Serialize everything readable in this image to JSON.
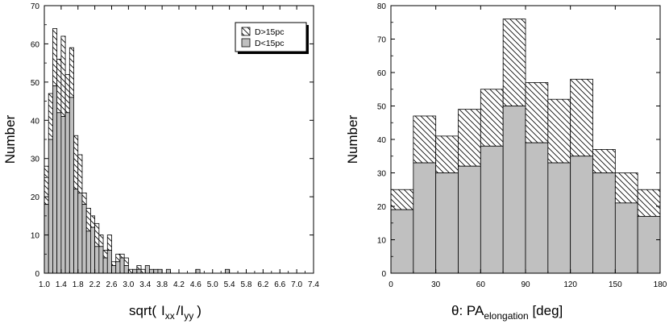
{
  "chart_data": [
    {
      "type": "bar",
      "subtype": "stacked-histogram",
      "xlabel": {
        "main": "sqrt(",
        "sub1": "xx",
        "sep": "/",
        "sub2": "yy",
        "close": ")"
      },
      "ylabel": "Number",
      "xlim": [
        1.0,
        7.4
      ],
      "ylim": [
        0,
        70
      ],
      "bin_width": 0.1,
      "x_ticks": [
        "1.0",
        "1.4",
        "1.8",
        "2.2",
        "2.6",
        "3.0",
        "3.4",
        "3.8",
        "4.2",
        "4.6",
        "5.0",
        "5.4",
        "5.8",
        "6.2",
        "6.6",
        "7.0",
        "7.4"
      ],
      "y_ticks": [
        0,
        10,
        20,
        30,
        40,
        50,
        60,
        70
      ],
      "bins": [
        1.0,
        1.1,
        1.2,
        1.3,
        1.4,
        1.5,
        1.6,
        1.7,
        1.8,
        1.9,
        2.0,
        2.1,
        2.2,
        2.3,
        2.4,
        2.5,
        2.6,
        2.7,
        2.8,
        2.9,
        3.0,
        3.1,
        3.2,
        3.3,
        3.4,
        3.5,
        3.6,
        3.7,
        3.8,
        3.9,
        4.0,
        4.1,
        4.2,
        4.3,
        4.4,
        4.5,
        4.6,
        4.7,
        4.8,
        4.9,
        5.0,
        5.1,
        5.2,
        5.3,
        5.4,
        5.5,
        5.6,
        5.7,
        5.8,
        5.9,
        6.0,
        6.1,
        6.2,
        6.3,
        6.4,
        6.5,
        6.6,
        6.7,
        6.8,
        6.9,
        7.0,
        7.1,
        7.2,
        7.3
      ],
      "series": [
        {
          "name": "D<15pc",
          "fill": "#c0c0c0",
          "values": [
            18,
            35,
            49,
            42,
            41,
            42,
            46,
            22,
            21,
            18,
            11,
            12,
            7,
            7,
            4,
            6,
            2,
            3,
            4,
            2,
            0,
            1,
            1,
            0,
            2,
            1,
            1,
            1,
            0,
            1,
            0,
            0,
            0,
            0,
            0,
            0,
            1,
            0,
            0,
            0,
            0,
            0,
            0,
            1,
            0,
            0,
            0,
            0,
            0,
            0,
            0,
            0,
            0,
            0,
            0,
            0,
            0,
            0,
            0,
            0,
            0,
            0,
            0,
            0
          ]
        },
        {
          "name": "D>15pc",
          "fill": "hatch",
          "values": [
            28,
            47,
            64,
            56,
            62,
            52,
            59,
            36,
            31,
            21,
            17,
            15,
            13,
            10,
            6,
            10,
            3,
            5,
            5,
            4,
            1,
            1,
            2,
            1,
            2,
            1,
            1,
            1,
            0,
            1,
            0,
            0,
            0,
            0,
            0,
            0,
            1,
            0,
            0,
            0,
            0,
            0,
            0,
            1,
            0,
            0,
            0,
            0,
            0,
            0,
            0,
            0,
            0,
            0,
            0,
            0,
            0,
            0,
            0,
            0,
            0,
            0,
            0,
            0
          ]
        }
      ],
      "legend": {
        "placement": "top-right",
        "entries": [
          "D>15pc",
          "D<15pc"
        ]
      }
    },
    {
      "type": "bar",
      "subtype": "stacked-histogram",
      "xlabel": {
        "prefix": "θ:  PA",
        "sub": "elongation",
        "suffix": " [deg]"
      },
      "ylabel": "Number",
      "xlim": [
        0,
        180
      ],
      "ylim": [
        0,
        80
      ],
      "bin_width": 15,
      "x_ticks": [
        "0",
        "30",
        "60",
        "90",
        "120",
        "150",
        "180"
      ],
      "y_ticks": [
        0,
        10,
        20,
        30,
        40,
        50,
        60,
        70,
        80
      ],
      "bins": [
        0,
        15,
        30,
        45,
        60,
        75,
        90,
        105,
        120,
        135,
        150,
        165
      ],
      "series": [
        {
          "name": "D<15pc",
          "fill": "#c0c0c0",
          "values": [
            19,
            33,
            30,
            32,
            38,
            50,
            39,
            33,
            35,
            30,
            21,
            17
          ]
        },
        {
          "name": "D>15pc",
          "fill": "hatch",
          "values": [
            25,
            47,
            41,
            49,
            55,
            76,
            57,
            52,
            58,
            37,
            30,
            25
          ]
        }
      ]
    }
  ]
}
